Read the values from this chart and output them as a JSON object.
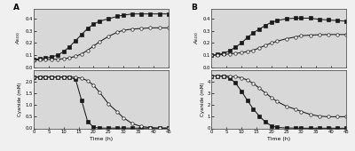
{
  "panel_A": {
    "growth": {
      "time": [
        0,
        2,
        4,
        6,
        8,
        10,
        12,
        14,
        16,
        18,
        20,
        22,
        25,
        28,
        30,
        33,
        36,
        39,
        42,
        45
      ],
      "filled": [
        0.065,
        0.07,
        0.075,
        0.085,
        0.1,
        0.13,
        0.17,
        0.22,
        0.27,
        0.32,
        0.355,
        0.38,
        0.4,
        0.42,
        0.43,
        0.44,
        0.44,
        0.44,
        0.44,
        0.44
      ],
      "open": [
        0.06,
        0.062,
        0.063,
        0.065,
        0.067,
        0.07,
        0.078,
        0.09,
        0.11,
        0.14,
        0.175,
        0.21,
        0.255,
        0.29,
        0.305,
        0.315,
        0.32,
        0.325,
        0.325,
        0.325
      ],
      "ylabel": "$A_{600}$",
      "ylim": [
        0.0,
        0.48
      ],
      "yticks": [
        0.0,
        0.1,
        0.2,
        0.3,
        0.4
      ]
    },
    "cyanide": {
      "time": [
        0,
        2,
        4,
        6,
        8,
        10,
        12,
        14,
        16,
        18,
        20,
        22,
        25,
        28,
        30,
        33,
        36,
        39,
        42,
        45
      ],
      "filled": [
        2.2,
        2.2,
        2.2,
        2.2,
        2.2,
        2.2,
        2.2,
        2.1,
        1.2,
        0.3,
        0.05,
        0.01,
        0.01,
        0.01,
        0.01,
        0.01,
        0.01,
        0.01,
        0.01,
        0.01
      ],
      "open": [
        2.2,
        2.2,
        2.2,
        2.2,
        2.2,
        2.2,
        2.2,
        2.2,
        2.15,
        2.05,
        1.85,
        1.55,
        1.05,
        0.7,
        0.45,
        0.2,
        0.08,
        0.03,
        0.01,
        0.01
      ],
      "ylabel": "Cyanide (mM)",
      "ylim": [
        0.0,
        2.5
      ],
      "yticks": [
        0.0,
        0.5,
        1.0,
        1.5,
        2.0
      ]
    },
    "xlabel": "Time (h)",
    "xlim": [
      0,
      45
    ],
    "xticks": [
      0,
      5,
      10,
      15,
      20,
      25,
      30,
      35,
      40,
      45
    ],
    "label": "A"
  },
  "panel_B": {
    "growth": {
      "time": [
        0,
        2,
        4,
        6,
        8,
        10,
        12,
        14,
        16,
        18,
        20,
        22,
        25,
        28,
        30,
        33,
        36,
        39,
        42,
        45
      ],
      "filled": [
        0.1,
        0.105,
        0.115,
        0.135,
        0.165,
        0.2,
        0.245,
        0.285,
        0.315,
        0.345,
        0.37,
        0.385,
        0.4,
        0.405,
        0.405,
        0.405,
        0.395,
        0.39,
        0.385,
        0.38
      ],
      "open": [
        0.1,
        0.1,
        0.105,
        0.11,
        0.115,
        0.12,
        0.13,
        0.14,
        0.16,
        0.18,
        0.2,
        0.215,
        0.235,
        0.25,
        0.26,
        0.265,
        0.268,
        0.27,
        0.27,
        0.27
      ],
      "ylabel": "$A_{600}$",
      "ylim": [
        0.0,
        0.48
      ],
      "yticks": [
        0.0,
        0.1,
        0.2,
        0.3,
        0.4
      ]
    },
    "cyanide": {
      "time": [
        0,
        2,
        4,
        6,
        8,
        10,
        12,
        14,
        16,
        18,
        20,
        22,
        25,
        28,
        30,
        33,
        36,
        39,
        42,
        45
      ],
      "filled": [
        4.5,
        4.5,
        4.45,
        4.35,
        3.9,
        3.2,
        2.4,
        1.65,
        1.05,
        0.55,
        0.22,
        0.08,
        0.03,
        0.02,
        0.01,
        0.01,
        0.01,
        0.01,
        0.01,
        0.01
      ],
      "open": [
        4.5,
        4.5,
        4.5,
        4.48,
        4.43,
        4.35,
        4.15,
        3.85,
        3.45,
        3.05,
        2.65,
        2.3,
        1.9,
        1.65,
        1.45,
        1.2,
        1.05,
        1.0,
        1.0,
        1.0
      ],
      "ylabel": "Cyanide (mM)",
      "ylim": [
        0.0,
        5.0
      ],
      "yticks": [
        0.0,
        1.0,
        2.0,
        3.0,
        4.0
      ]
    },
    "xlabel": "Time (h)",
    "xlim": [
      0,
      45
    ],
    "xticks": [
      0,
      5,
      10,
      15,
      20,
      25,
      30,
      35,
      40,
      45
    ],
    "label": "B"
  },
  "marker_filled": "s",
  "marker_open": "o",
  "markersize": 2.5,
  "linewidth": 0.75,
  "color": "#1a1a1a",
  "markerfacecolor_open": "white",
  "bg_color": "#d8d8d8",
  "fig_bg": "#f0f0f0"
}
